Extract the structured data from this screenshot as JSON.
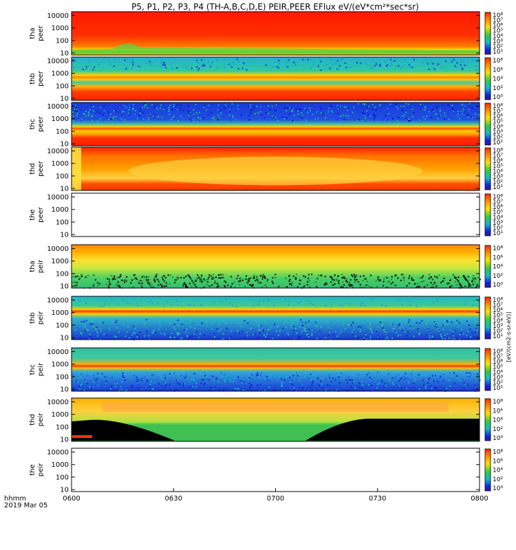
{
  "title": "P5, P1, P2, P3, P4 (TH-A,B,C,D,E) PEIR,PEER EFlux eV/(eV*cm²*sec*sr)",
  "colorbar_unit": "[eV/(cm2-s-sr-eV)]",
  "colors": {
    "red": "#ff2a00",
    "orange": "#ff9a00",
    "yellow": "#ffe000",
    "green": "#2ecc40",
    "cyan": "#18b8c8",
    "blue": "#1020e0",
    "black": "#000000",
    "white": "#ffffff"
  },
  "chart_data": {
    "type": "heatmap",
    "x_ticks": [
      "0600",
      "0630",
      "0700",
      "0730",
      "0800"
    ],
    "x_range": [
      "06:00",
      "08:00"
    ],
    "x_label_lines": [
      "hhmm",
      "2019 Mar 05"
    ],
    "y_scale": "log",
    "y_range": [
      7,
      20000
    ],
    "y_ticks": [
      "10000",
      "1000",
      "100",
      "10"
    ],
    "colorbar_ticks_full": [
      "10⁸",
      "10⁷",
      "10⁶",
      "10⁵",
      "10⁴",
      "10³",
      "10²",
      "10¹"
    ],
    "colorbar_ticks_sparse": [
      "10⁸",
      "10⁶",
      "10⁴",
      "10²",
      "10⁰"
    ],
    "panels": [
      {
        "label": [
          "tha",
          "peer"
        ],
        "pattern": "tha_peer",
        "colorbar": "full"
      },
      {
        "label": [
          "thb",
          "peer"
        ],
        "pattern": "thb_peer",
        "colorbar": "sparse"
      },
      {
        "label": [
          "thc",
          "peer"
        ],
        "pattern": "thc_peer",
        "colorbar": "full"
      },
      {
        "label": [
          "thd",
          "peer"
        ],
        "pattern": "thd_peer",
        "colorbar": "full"
      },
      {
        "label": [
          "the",
          "peer"
        ],
        "pattern": "empty",
        "colorbar": "full"
      },
      {
        "label": [
          "tha",
          "peir"
        ],
        "pattern": "tha_peir",
        "colorbar": "sparse"
      },
      {
        "label": [
          "thb",
          "peir"
        ],
        "pattern": "thb_peir",
        "colorbar": "full"
      },
      {
        "label": [
          "thc",
          "peir"
        ],
        "pattern": "thc_peir",
        "colorbar": "full"
      },
      {
        "label": [
          "thd",
          "peir"
        ],
        "pattern": "thd_peir",
        "colorbar": "sparse"
      },
      {
        "label": [
          "the",
          "peir"
        ],
        "pattern": "empty",
        "colorbar": "sparse"
      }
    ]
  }
}
